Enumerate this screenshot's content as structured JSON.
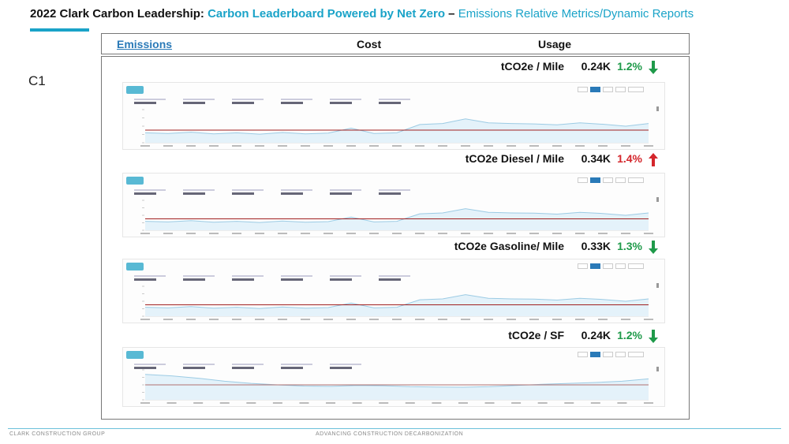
{
  "header": {
    "title_part1": "2022 Clark Carbon Leadership:",
    "title_part2": "Carbon Leaderboard Powered by Net Zero",
    "title_part3": "–",
    "title_part4": "Emissions Relative Metrics/Dynamic Reports",
    "accent_color": "#1aa3c8"
  },
  "section_label": "C1",
  "tabs": [
    {
      "label": "Emissions",
      "active": true
    },
    {
      "label": "Cost",
      "active": false
    },
    {
      "label": "Usage",
      "active": false
    }
  ],
  "metrics": [
    {
      "label": "tCO2e / Mile",
      "value": "0.24K",
      "change": "1.2%",
      "direction": "down",
      "color": "#1f9a4a",
      "icon": "arrow-down-icon"
    },
    {
      "label": "tCO2e Diesel  / Mile",
      "value": "0.34K",
      "change": "1.4%",
      "direction": "up",
      "color": "#d4262c",
      "icon": "arrow-up-icon"
    },
    {
      "label": "tCO2e Gasoline/ Mile",
      "value": "0.33K",
      "change": "1.3%",
      "direction": "down",
      "color": "#1f9a4a",
      "icon": "arrow-down-icon"
    },
    {
      "label": "tCO2e / SF",
      "value": "0.24K",
      "change": "1.2%",
      "direction": "down",
      "color": "#1f9a4a",
      "icon": "arrow-down-icon"
    }
  ],
  "footer": {
    "left": "CLARK CONSTRUCTION GROUP",
    "center": "ADVANCING CONSTRUCTION DECARBONIZATION"
  }
}
